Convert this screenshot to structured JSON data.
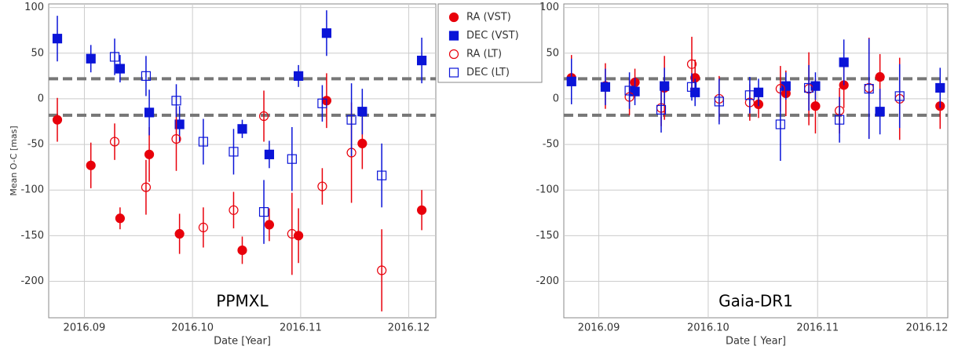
{
  "chart_data": [
    {
      "type": "scatter",
      "annotation": "PPMXL",
      "ylabel": "Mean O-C [mas]",
      "xlabel": "Date [Year]",
      "xlim": [
        2016.0867,
        2016.1225
      ],
      "ylim": [
        -240,
        104
      ],
      "xticks": [
        2016.09,
        {
          "value": 2016.1,
          "label": "2016.10"
        },
        2016.11,
        2016.12
      ],
      "yticks": [
        100,
        50,
        0,
        -50,
        -100,
        -150,
        -200
      ],
      "grid": true,
      "reference_lines": [
        22,
        -18
      ],
      "series": [
        {
          "name": "RA (VST)",
          "color": "#e8000b",
          "marker": "circle",
          "filled": true,
          "x": [
            2016.0875,
            2016.0906,
            2016.0933,
            2016.096,
            2016.0988,
            2016.1046,
            2016.1071,
            2016.1098,
            2016.1124,
            2016.1157,
            2016.1212
          ],
          "values": [
            -23,
            -73,
            -131,
            -61,
            -148,
            -166,
            -138,
            -150,
            -2,
            -49,
            -122
          ],
          "errors": [
            24,
            25,
            12,
            30,
            22,
            15,
            18,
            30,
            30,
            28,
            22
          ]
        },
        {
          "name": "DEC (VST)",
          "color": "#0a14d8",
          "marker": "square",
          "filled": true,
          "x": [
            2016.0875,
            2016.0906,
            2016.0933,
            2016.096,
            2016.0988,
            2016.1046,
            2016.1071,
            2016.1098,
            2016.1124,
            2016.1157,
            2016.1212
          ],
          "values": [
            66,
            44,
            33,
            -15,
            -28,
            -33,
            -61,
            25,
            72,
            -14,
            42
          ],
          "errors": [
            25,
            15,
            15,
            25,
            20,
            10,
            15,
            12,
            25,
            25,
            25
          ]
        },
        {
          "name": "RA (LT)",
          "color": "#e8000b",
          "marker": "circle",
          "filled": false,
          "x": [
            2016.0928,
            2016.0957,
            2016.0985,
            2016.101,
            2016.1038,
            2016.1066,
            2016.1092,
            2016.112,
            2016.1147,
            2016.1175
          ],
          "values": [
            -47,
            -97,
            -44,
            -141,
            -122,
            -19,
            -148,
            -96,
            -59,
            -188
          ],
          "errors": [
            20,
            30,
            35,
            22,
            20,
            28,
            45,
            20,
            55,
            45
          ]
        },
        {
          "name": "DEC (LT)",
          "color": "#0a14d8",
          "marker": "square",
          "filled": false,
          "x": [
            2016.0928,
            2016.0957,
            2016.0985,
            2016.101,
            2016.1038,
            2016.1066,
            2016.1092,
            2016.112,
            2016.1147,
            2016.1175
          ],
          "values": [
            46,
            25,
            -2,
            -47,
            -58,
            -124,
            -66,
            -5,
            -23,
            -84
          ],
          "errors": [
            20,
            22,
            18,
            25,
            25,
            35,
            35,
            20,
            40,
            35
          ]
        }
      ]
    },
    {
      "type": "scatter",
      "annotation": "Gaia-DR1",
      "xlabel": "Date [ Year]",
      "xlim": [
        2016.0868,
        2016.1219
      ],
      "ylim": [
        -240,
        104
      ],
      "xticks": [
        2016.09,
        {
          "value": 2016.1,
          "label": "2016.10"
        },
        2016.11,
        2016.12
      ],
      "yticks": [
        100,
        50,
        0,
        -50,
        -100,
        -150,
        -200
      ],
      "grid": true,
      "reference_lines": [
        22,
        -18
      ],
      "series": [
        {
          "color": "#e8000b",
          "marker": "circle",
          "filled": true,
          "x": [
            2016.0875,
            2016.0906,
            2016.0933,
            2016.096,
            2016.0988,
            2016.1046,
            2016.1071,
            2016.1098,
            2016.1124,
            2016.1157,
            2016.1212
          ],
          "values": [
            23,
            14,
            18,
            12,
            23,
            -6,
            6,
            -8,
            15,
            24,
            -8
          ],
          "errors": [
            25,
            25,
            15,
            35,
            20,
            15,
            25,
            30,
            25,
            25,
            25
          ]
        },
        {
          "color": "#0a14d8",
          "marker": "square",
          "filled": true,
          "x": [
            2016.0875,
            2016.0906,
            2016.0933,
            2016.096,
            2016.0988,
            2016.1046,
            2016.1071,
            2016.1098,
            2016.1124,
            2016.1157,
            2016.1212
          ],
          "values": [
            19,
            13,
            8,
            14,
            7,
            7,
            14,
            14,
            40,
            -14,
            12
          ],
          "errors": [
            25,
            20,
            15,
            20,
            15,
            15,
            15,
            15,
            25,
            25,
            22
          ]
        },
        {
          "color": "#e8000b",
          "marker": "circle",
          "filled": false,
          "x": [
            2016.0928,
            2016.0957,
            2016.0985,
            2016.101,
            2016.1038,
            2016.1066,
            2016.1092,
            2016.112,
            2016.1147,
            2016.1175
          ],
          "values": [
            2,
            -10,
            38,
            0,
            -4,
            11,
            11,
            -13,
            12,
            0
          ],
          "errors": [
            20,
            20,
            30,
            25,
            20,
            25,
            40,
            25,
            55,
            45
          ]
        },
        {
          "color": "#0a14d8",
          "marker": "square",
          "filled": false,
          "x": [
            2016.0928,
            2016.0957,
            2016.0985,
            2016.101,
            2016.1038,
            2016.1066,
            2016.1092,
            2016.112,
            2016.1147,
            2016.1175
          ],
          "values": [
            9,
            -12,
            13,
            -3,
            4,
            -28,
            12,
            -23,
            11,
            3
          ],
          "errors": [
            20,
            25,
            15,
            25,
            20,
            40,
            25,
            25,
            55,
            35
          ]
        }
      ]
    }
  ]
}
